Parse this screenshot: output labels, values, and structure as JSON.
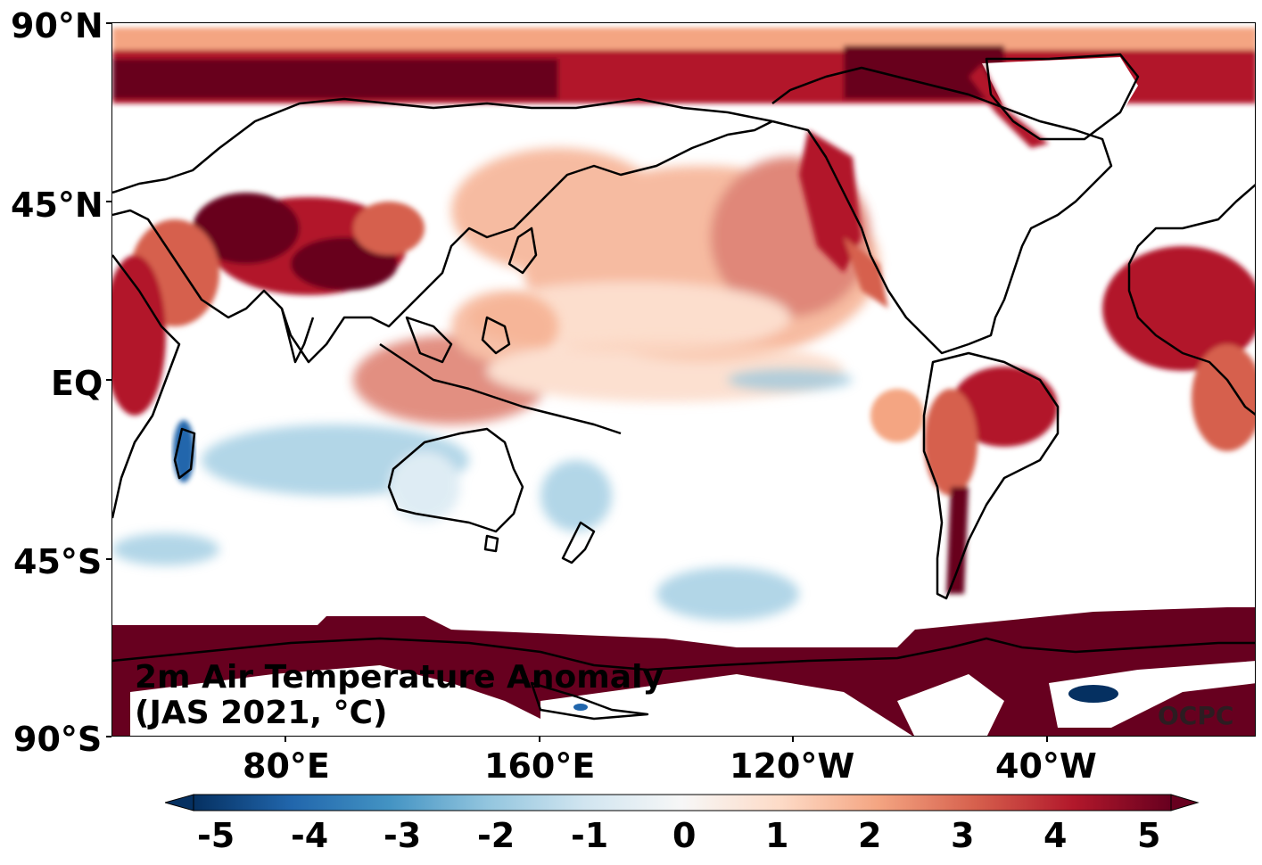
{
  "map": {
    "title_line1": "2m Air Temperature Anomaly",
    "title_line2": "(JAS 2021, °C)",
    "credit": "OCPC",
    "lat_labels": [
      "90°N",
      "45°N",
      "EQ",
      "45°S",
      "90°S"
    ],
    "lon_labels": [
      "80°E",
      "160°E",
      "120°W",
      "40°W"
    ],
    "colormap": "RdBu_r",
    "colors": {
      "deep_blue": "#053061",
      "blue": "#2166ac",
      "light_blue": "#92c5de",
      "white": "#ffffff",
      "light_red": "#f4a582",
      "red": "#d6604d",
      "dark_red": "#67001f",
      "coastline": "#000000"
    }
  },
  "colorbar": {
    "ticks": [
      "-5",
      "-4",
      "-3",
      "-2",
      "-1",
      "0",
      "1",
      "2",
      "3",
      "4",
      "5"
    ],
    "range": [
      -5,
      5
    ],
    "extend": "both"
  }
}
